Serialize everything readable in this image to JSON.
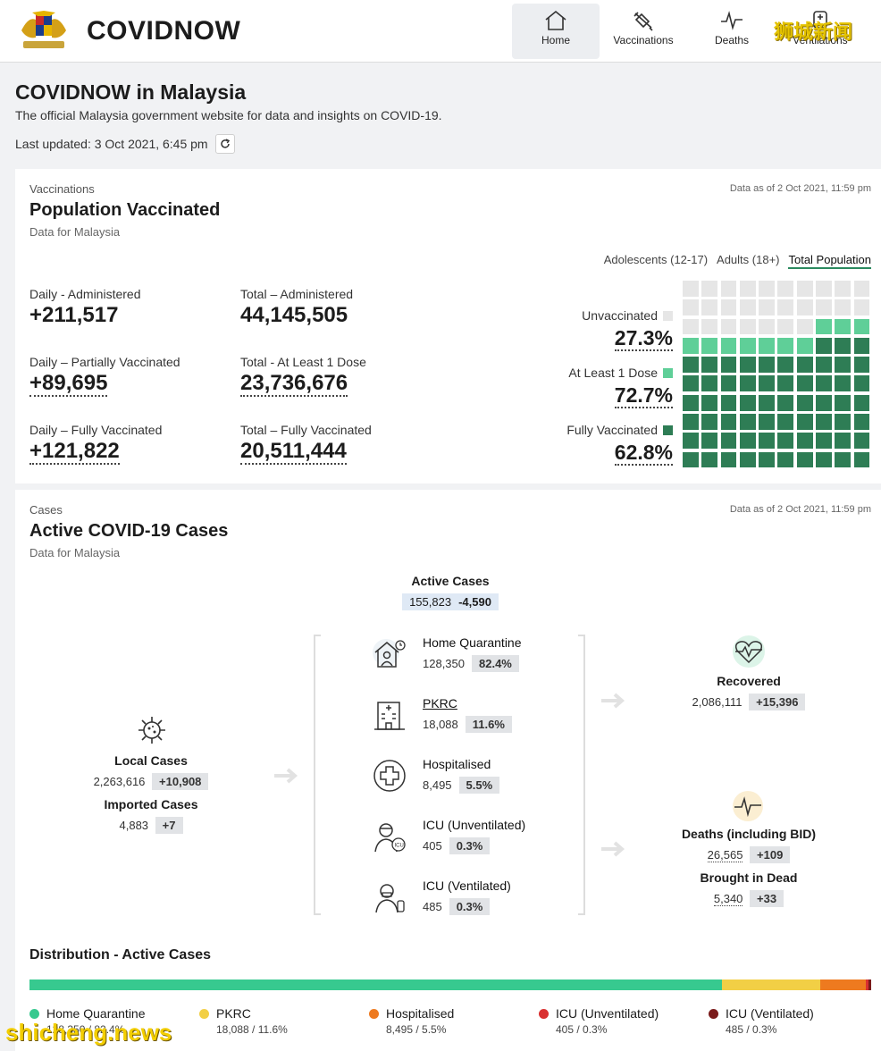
{
  "header": {
    "brand": "COVIDNOW",
    "nav": [
      {
        "label": "Home",
        "icon": "home-icon",
        "active": true
      },
      {
        "label": "Vaccinations",
        "icon": "syringe-icon",
        "active": false
      },
      {
        "label": "Deaths",
        "icon": "pulse-icon",
        "active": false
      },
      {
        "label": "Ventilations",
        "icon": "ventilator-icon",
        "active": false
      }
    ],
    "watermark_cn": "狮城新闻"
  },
  "page": {
    "title": "COVIDNOW in Malaysia",
    "subtitle": "The official Malaysia government website for data and insights on COVID-19.",
    "last_updated": "Last updated: 3 Oct 2021, 6:45 pm"
  },
  "vaccinations": {
    "eyebrow": "Vaccinations",
    "title": "Population Vaccinated",
    "note": "Data for Malaysia",
    "as_of": "Data as of 2 Oct 2021, 11:59 pm",
    "tabs": [
      {
        "label": "Adolescents (12-17)",
        "active": false
      },
      {
        "label": "Adults (18+)",
        "active": false
      },
      {
        "label": "Total Population",
        "active": true
      }
    ],
    "stats": [
      {
        "label": "Daily - Administered",
        "value": "+211,517"
      },
      {
        "label": "Total – Administered",
        "value": "44,145,505"
      },
      {
        "label": "Daily – Partially Vaccinated",
        "value": "+89,695"
      },
      {
        "label": "Total - At Least 1 Dose",
        "value": "23,736,676"
      },
      {
        "label": "Daily – Fully Vaccinated",
        "value": "+121,822"
      },
      {
        "label": "Total – Fully Vaccinated",
        "value": "20,511,444"
      }
    ],
    "legend": [
      {
        "label": "Unvaccinated",
        "pct": "27.3%",
        "color": "#e6e6e6"
      },
      {
        "label": "At Least 1 Dose",
        "pct": "72.7%",
        "color": "#5fcf98"
      },
      {
        "label": "Fully Vaccinated",
        "pct": "62.8%",
        "color": "#2e7d55"
      }
    ],
    "waffle": {
      "total": 100,
      "unvaccinated": 27,
      "partial": 10,
      "full": 63
    }
  },
  "cases": {
    "eyebrow": "Cases",
    "title": "Active COVID-19 Cases",
    "note": "Data for Malaysia",
    "as_of": "Data as of 2 Oct 2021, 11:59 pm",
    "active": {
      "label": "Active Cases",
      "value": "155,823",
      "delta": "-4,590"
    },
    "local": {
      "label": "Local Cases",
      "value": "2,263,616",
      "delta": "+10,908"
    },
    "imported": {
      "label": "Imported Cases",
      "value": "4,883",
      "delta": "+7"
    },
    "categories": [
      {
        "label": "Home Quarantine",
        "value": "128,350",
        "pct": "82.4%",
        "icon": "house-person-icon"
      },
      {
        "label": "PKRC",
        "value": "18,088",
        "pct": "11.6%",
        "icon": "building-icon"
      },
      {
        "label": "Hospitalised",
        "value": "8,495",
        "pct": "5.5%",
        "icon": "medical-cross-icon"
      },
      {
        "label": "ICU (Unventilated)",
        "value": "405",
        "pct": "0.3%",
        "icon": "icu-doctor-icon"
      },
      {
        "label": "ICU (Ventilated)",
        "value": "485",
        "pct": "0.3%",
        "icon": "ventilated-patient-icon"
      }
    ],
    "recovered": {
      "label": "Recovered",
      "value": "2,086,111",
      "delta": "+15,396"
    },
    "deaths": {
      "label": "Deaths (including BID)",
      "value": "26,565",
      "delta": "+109"
    },
    "bid": {
      "label": "Brought in Dead",
      "value": "5,340",
      "delta": "+33"
    }
  },
  "distribution": {
    "title": "Distribution - Active Cases",
    "segments": [
      {
        "label": "Home Quarantine",
        "sub": "128,350 / 82.4%",
        "share": 82.4,
        "color": "#37c98f"
      },
      {
        "label": "PKRC",
        "sub": "18,088 / 11.6%",
        "share": 11.6,
        "color": "#f2cf45"
      },
      {
        "label": "Hospitalised",
        "sub": "8,495 / 5.5%",
        "share": 5.5,
        "color": "#ee7a1f"
      },
      {
        "label": "ICU (Unventilated)",
        "sub": "405 / 0.3%",
        "share": 0.3,
        "color": "#d93030"
      },
      {
        "label": "ICU (Ventilated)",
        "sub": "485 / 0.3%",
        "share": 0.3,
        "color": "#7a1b1b"
      }
    ]
  },
  "watermark_en": "shicheng.news"
}
